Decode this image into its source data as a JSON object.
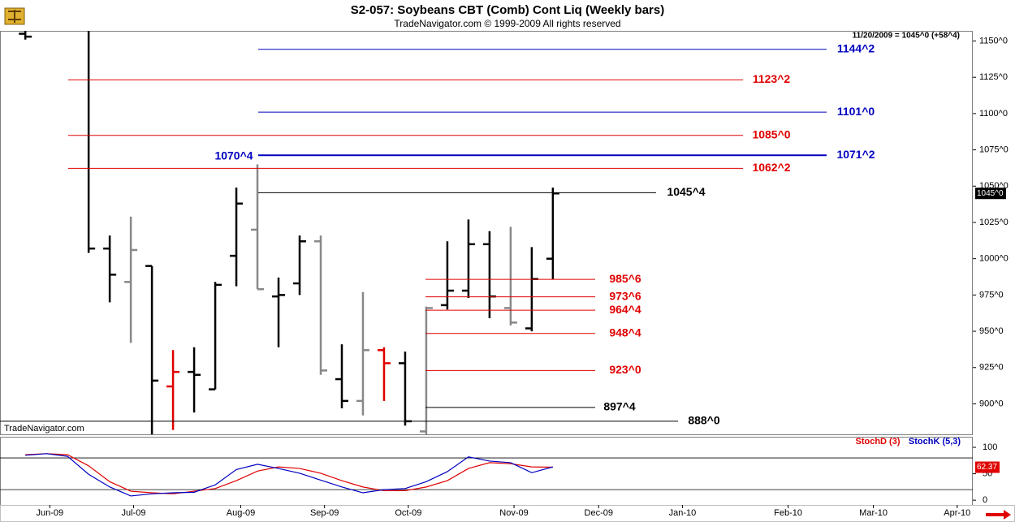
{
  "chart_data": [
    {
      "type": "ohlc",
      "title": "S2-057:  Soybeans CBT (Comb) Cont Liq  (Weekly bars)",
      "subtitle": "TradeNavigator.com © 1999-2009 All rights reserved",
      "annotation": "11/20/2009 = 1045^0 (+58^4)",
      "watermark": "TradeNavigator.com",
      "last_price": {
        "value": 1045,
        "label": "1045^0"
      },
      "marker": {
        "value": 1070.5,
        "label": "1070^4"
      },
      "xlim": [
        -1.2,
        44.9
      ],
      "ylim": [
        879,
        1157
      ],
      "yticks": [
        {
          "value": 1150,
          "label": "1150^0"
        },
        {
          "value": 1125,
          "label": "1125^0"
        },
        {
          "value": 1100,
          "label": "1100^0"
        },
        {
          "value": 1075,
          "label": "1075^0"
        },
        {
          "value": 1050,
          "label": "1050^0"
        },
        {
          "value": 1025,
          "label": "1025^0"
        },
        {
          "value": 1000,
          "label": "1000^0"
        },
        {
          "value": 975,
          "label": "975^0"
        },
        {
          "value": 950,
          "label": "950^0"
        },
        {
          "value": 925,
          "label": "925^0"
        },
        {
          "value": 900,
          "label": "900^0"
        }
      ],
      "x": [
        0,
        3,
        4,
        5,
        6,
        7,
        8,
        9,
        10,
        11,
        12,
        13,
        14,
        15,
        16,
        17,
        18,
        19,
        20,
        21,
        22,
        23,
        24,
        25
      ],
      "open": [
        1155,
        1180,
        1007,
        984,
        995,
        912,
        922,
        910,
        1002,
        1020,
        974,
        983,
        1012,
        917,
        902,
        937,
        928,
        881,
        968,
        978,
        1010,
        966,
        952,
        1000
      ],
      "high": [
        1160,
        1200,
        1016,
        1029,
        995,
        937,
        939,
        984,
        1049,
        1065,
        987,
        1016,
        1016,
        941,
        977,
        939,
        936,
        967,
        1012,
        1027,
        1019,
        1022,
        1008,
        1049
      ],
      "low": [
        1151,
        1004,
        970,
        942,
        870,
        882,
        894,
        910,
        981,
        979,
        939,
        975,
        920,
        897,
        892,
        902,
        885,
        879,
        965,
        973,
        959,
        954,
        950,
        986
      ],
      "close": [
        1153,
        1007,
        989,
        1006,
        916,
        922,
        920,
        982,
        1038,
        979,
        975,
        1012,
        923,
        902,
        937,
        928,
        888,
        966,
        978,
        1010,
        974,
        956,
        986,
        1045
      ],
      "colors": [
        "#000000",
        "#000000",
        "#000000",
        "#888888",
        "#000000",
        "#e00000",
        "#000000",
        "#000000",
        "#000000",
        "#888888",
        "#000000",
        "#000000",
        "#888888",
        "#000000",
        "#888888",
        "#e00000",
        "#000000",
        "#888888",
        "#000000",
        "#000000",
        "#000000",
        "#888888",
        "#000000",
        "#000000"
      ],
      "levels": {
        "values": [
          1144.25,
          1123.25,
          1101,
          1085,
          1071.25,
          1062.25,
          1045.5,
          985.75,
          973.75,
          964.5,
          948.5,
          923,
          897.5,
          888
        ],
        "value_labels": [
          "1144^2",
          "1123^2",
          "1101^0",
          "1085^0",
          "1071^2",
          "1062^2",
          "1045^4",
          "985^6",
          "973^6",
          "964^4",
          "948^4",
          "923^0",
          "897^4",
          "888^0"
        ],
        "colors": [
          "#0000c0",
          "#e00000",
          "#0000c0",
          "#e00000",
          "#0000c0",
          "#e00000",
          "#000000",
          "#e00000",
          "#e00000",
          "#e00000",
          "#e00000",
          "#e00000",
          "#000000",
          "#000000"
        ]
      }
    },
    {
      "type": "line",
      "xlim": [
        -1.2,
        44.9
      ],
      "ylim": [
        -9,
        120
      ],
      "yticks": [
        0,
        50,
        100
      ],
      "levels": [
        20,
        80
      ],
      "xticks": [
        {
          "value": 1.16,
          "label": "Jun-09"
        },
        {
          "value": 5.13,
          "label": "Jul-09"
        },
        {
          "value": 10.21,
          "label": "Aug-09"
        },
        {
          "value": 14.18,
          "label": "Sep-09"
        },
        {
          "value": 18.15,
          "label": "Oct-09"
        },
        {
          "value": 23.16,
          "label": "Nov-09"
        },
        {
          "value": 27.17,
          "label": "Dec-09"
        },
        {
          "value": 31.14,
          "label": "Jan-10"
        },
        {
          "value": 36.15,
          "label": "Feb-10"
        },
        {
          "value": 40.19,
          "label": "Mar-10"
        },
        {
          "value": 44.16,
          "label": "Apr-10"
        }
      ],
      "x": [
        0,
        1,
        2,
        3,
        4,
        5,
        6,
        7,
        8,
        9,
        10,
        11,
        12,
        13,
        14,
        15,
        16,
        17,
        18,
        19,
        20,
        21,
        22,
        23,
        24,
        25
      ],
      "last_label": "62.37",
      "series": [
        {
          "name": "StochD (3)",
          "color": "#e00000",
          "values": [
            86,
            88,
            86,
            65,
            35,
            17,
            14,
            12,
            17,
            22,
            37,
            55,
            63,
            60,
            51,
            37,
            25,
            18,
            18,
            25,
            37,
            60,
            71,
            69,
            63,
            62.37
          ]
        },
        {
          "name": "StochK (5,3)",
          "color": "#0000c0",
          "values": [
            85,
            88,
            83,
            49,
            25,
            8,
            12,
            14,
            15,
            29,
            58,
            68,
            60,
            51,
            38,
            25,
            14,
            20,
            22,
            35,
            54,
            82,
            74,
            71,
            52,
            63
          ]
        }
      ]
    }
  ]
}
